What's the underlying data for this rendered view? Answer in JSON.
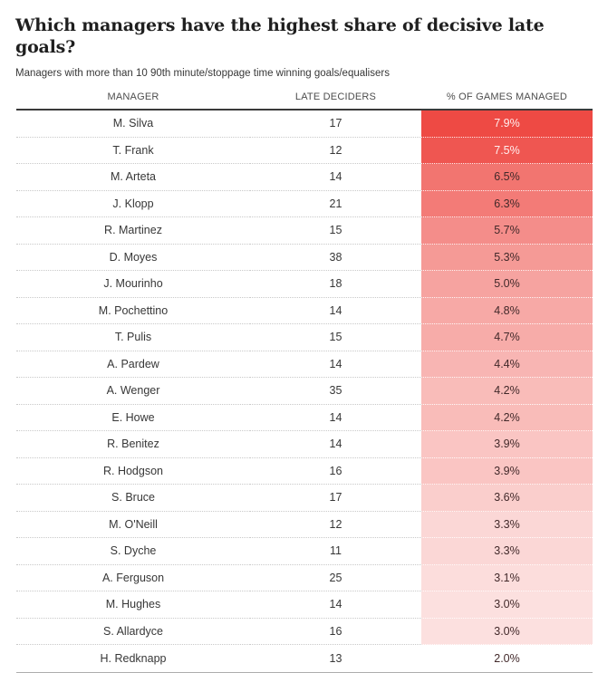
{
  "header": {
    "title": "Which managers have the highest share of decisive late goals?",
    "subtitle": "Managers with more than 10 90th minute/stoppage time winning goals/equalisers"
  },
  "table": {
    "columns": [
      "MANAGER",
      "LATE DECIDERS",
      "% OF GAMES MANAGED"
    ]
  },
  "chart_data": {
    "type": "table",
    "title": "Which managers have the highest share of decisive late goals?",
    "subtitle": "Managers with more than 10 90th minute/stoppage time winning goals/equalisers",
    "columns": [
      "Manager",
      "Late deciders",
      "% of games managed"
    ],
    "rows": [
      {
        "manager": "M. Silva",
        "late_deciders": 17,
        "pct_games_managed": 7.9,
        "pct_label": "7.9%"
      },
      {
        "manager": "T. Frank",
        "late_deciders": 12,
        "pct_games_managed": 7.5,
        "pct_label": "7.5%"
      },
      {
        "manager": "M. Arteta",
        "late_deciders": 14,
        "pct_games_managed": 6.5,
        "pct_label": "6.5%"
      },
      {
        "manager": "J. Klopp",
        "late_deciders": 21,
        "pct_games_managed": 6.3,
        "pct_label": "6.3%"
      },
      {
        "manager": "R. Martinez",
        "late_deciders": 15,
        "pct_games_managed": 5.7,
        "pct_label": "5.7%"
      },
      {
        "manager": "D. Moyes",
        "late_deciders": 38,
        "pct_games_managed": 5.3,
        "pct_label": "5.3%"
      },
      {
        "manager": "J. Mourinho",
        "late_deciders": 18,
        "pct_games_managed": 5.0,
        "pct_label": "5.0%"
      },
      {
        "manager": "M. Pochettino",
        "late_deciders": 14,
        "pct_games_managed": 4.8,
        "pct_label": "4.8%"
      },
      {
        "manager": "T. Pulis",
        "late_deciders": 15,
        "pct_games_managed": 4.7,
        "pct_label": "4.7%"
      },
      {
        "manager": "A. Pardew",
        "late_deciders": 14,
        "pct_games_managed": 4.4,
        "pct_label": "4.4%"
      },
      {
        "manager": "A. Wenger",
        "late_deciders": 35,
        "pct_games_managed": 4.2,
        "pct_label": "4.2%"
      },
      {
        "manager": "E. Howe",
        "late_deciders": 14,
        "pct_games_managed": 4.2,
        "pct_label": "4.2%"
      },
      {
        "manager": "R. Benitez",
        "late_deciders": 14,
        "pct_games_managed": 3.9,
        "pct_label": "3.9%"
      },
      {
        "manager": "R. Hodgson",
        "late_deciders": 16,
        "pct_games_managed": 3.9,
        "pct_label": "3.9%"
      },
      {
        "manager": "S. Bruce",
        "late_deciders": 17,
        "pct_games_managed": 3.6,
        "pct_label": "3.6%"
      },
      {
        "manager": "M. O'Neill",
        "late_deciders": 12,
        "pct_games_managed": 3.3,
        "pct_label": "3.3%"
      },
      {
        "manager": "S. Dyche",
        "late_deciders": 11,
        "pct_games_managed": 3.3,
        "pct_label": "3.3%"
      },
      {
        "manager": "A. Ferguson",
        "late_deciders": 25,
        "pct_games_managed": 3.1,
        "pct_label": "3.1%"
      },
      {
        "manager": "M. Hughes",
        "late_deciders": 14,
        "pct_games_managed": 3.0,
        "pct_label": "3.0%"
      },
      {
        "manager": "S. Allardyce",
        "late_deciders": 16,
        "pct_games_managed": 3.0,
        "pct_label": "3.0%"
      },
      {
        "manager": "H. Redknapp",
        "late_deciders": 13,
        "pct_games_managed": 2.0,
        "pct_label": "2.0%"
      }
    ],
    "color_scale": {
      "min_value": 2.0,
      "max_value": 7.9,
      "min_color": "#ffffff",
      "max_color": "#ee4a44",
      "light_text_threshold": 7.0,
      "light_text_color": "#ffeeee",
      "dark_text_color": "#42292a"
    },
    "layout": {
      "legend": "none",
      "grid": "dotted-row-separators",
      "value_column_heatmap": true
    }
  }
}
